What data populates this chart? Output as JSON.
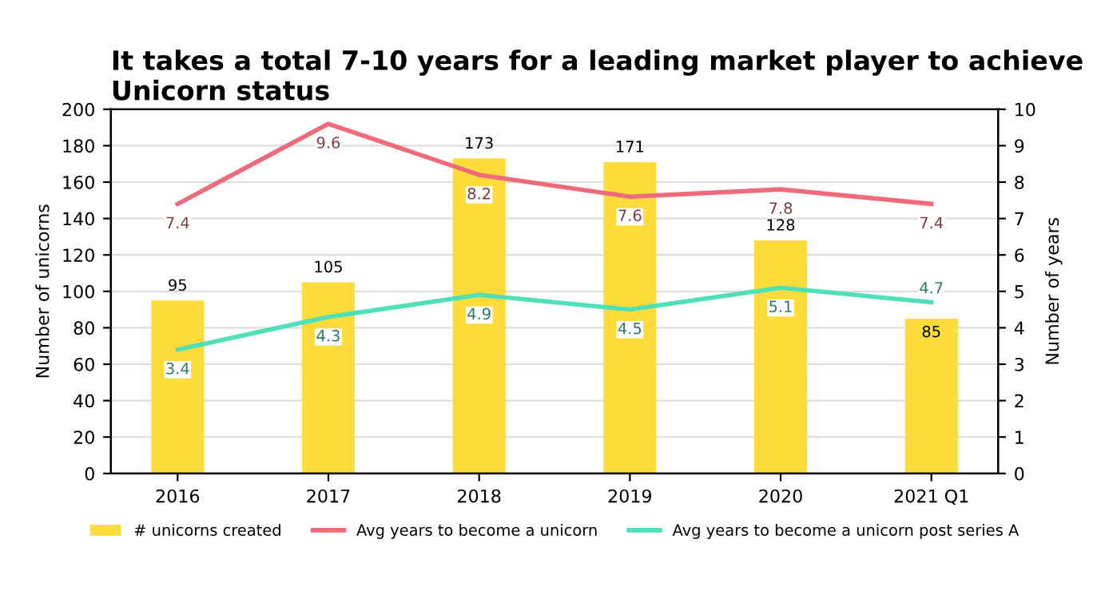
{
  "chart_data": {
    "type": "bar",
    "title": "It takes a total 7-10 years for a leading market player to achieve Unicorn status",
    "categories": [
      "2016",
      "2017",
      "2018",
      "2019",
      "2020",
      "2021 Q1"
    ],
    "ylabel": "Number of unicorns",
    "y2label": "Number of years",
    "ylim": [
      0,
      200
    ],
    "yticks": [
      0,
      20,
      40,
      60,
      80,
      100,
      120,
      140,
      160,
      180,
      200
    ],
    "y2lim": [
      0,
      10
    ],
    "y2ticks": [
      0,
      1,
      2,
      3,
      4,
      5,
      6,
      7,
      8,
      9,
      10
    ],
    "grid": "y",
    "legend": "bottom",
    "data_labels": true,
    "series": [
      {
        "name": "# unicorns created",
        "color": "#fddc3c",
        "values": [
          95,
          105,
          173,
          171,
          128,
          85
        ]
      },
      {
        "name": "Avg years to become a unicorn",
        "type": "line",
        "axis": "y2",
        "color": "#ef6b7b",
        "values": [
          7.4,
          9.6,
          8.2,
          7.6,
          7.8,
          7.4
        ]
      },
      {
        "name": "Avg years to become a unicorn post series A",
        "type": "line",
        "axis": "y2",
        "color": "#4fe0b8",
        "values": [
          3.4,
          4.3,
          4.9,
          4.5,
          5.1,
          4.7
        ]
      }
    ]
  }
}
